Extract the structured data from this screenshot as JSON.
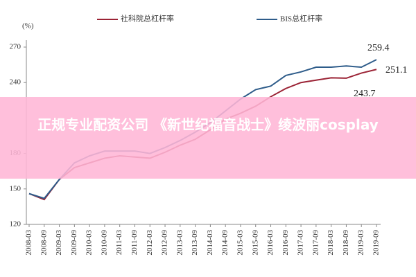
{
  "chart_data": {
    "type": "line",
    "y_label": "(%)",
    "categories": [
      "2008-03",
      "2008-09",
      "2009-03",
      "2009-09",
      "2010-03",
      "2010-09",
      "2011-03",
      "2011-09",
      "2012-03",
      "2012-09",
      "2013-03",
      "2013-09",
      "2014-03",
      "2014-09",
      "2015-03",
      "2015-09",
      "2016-03",
      "2016-09",
      "2017-03",
      "2017-09",
      "2018-03",
      "2018-09",
      "2019-03",
      "2019-09"
    ],
    "series": [
      {
        "name": "社科院总杠杆率",
        "color": "#9b2335",
        "values": [
          146,
          141,
          158,
          168,
          172,
          176,
          178,
          177,
          176,
          181,
          187,
          192,
          200,
          209,
          214,
          220,
          228,
          235,
          240,
          242,
          244,
          243.7,
          248,
          251.1
        ]
      },
      {
        "name": "BIS总杠杆率",
        "color": "#2e5c8a",
        "values": [
          146,
          142,
          158,
          172,
          178,
          182,
          182,
          182,
          180,
          185,
          191,
          198,
          206,
          216,
          226,
          234,
          237,
          246,
          249,
          253,
          253,
          254,
          253,
          259.4
        ]
      }
    ],
    "annotations": [
      "259.4",
      "251.1",
      "243.7"
    ],
    "ylim": [
      120,
      270
    ],
    "yticks": [
      120,
      150,
      180,
      240,
      270
    ]
  },
  "overlay": {
    "banner_text": "正规专业配资公司 《新世纪福音战士》绫波丽cosplay"
  }
}
